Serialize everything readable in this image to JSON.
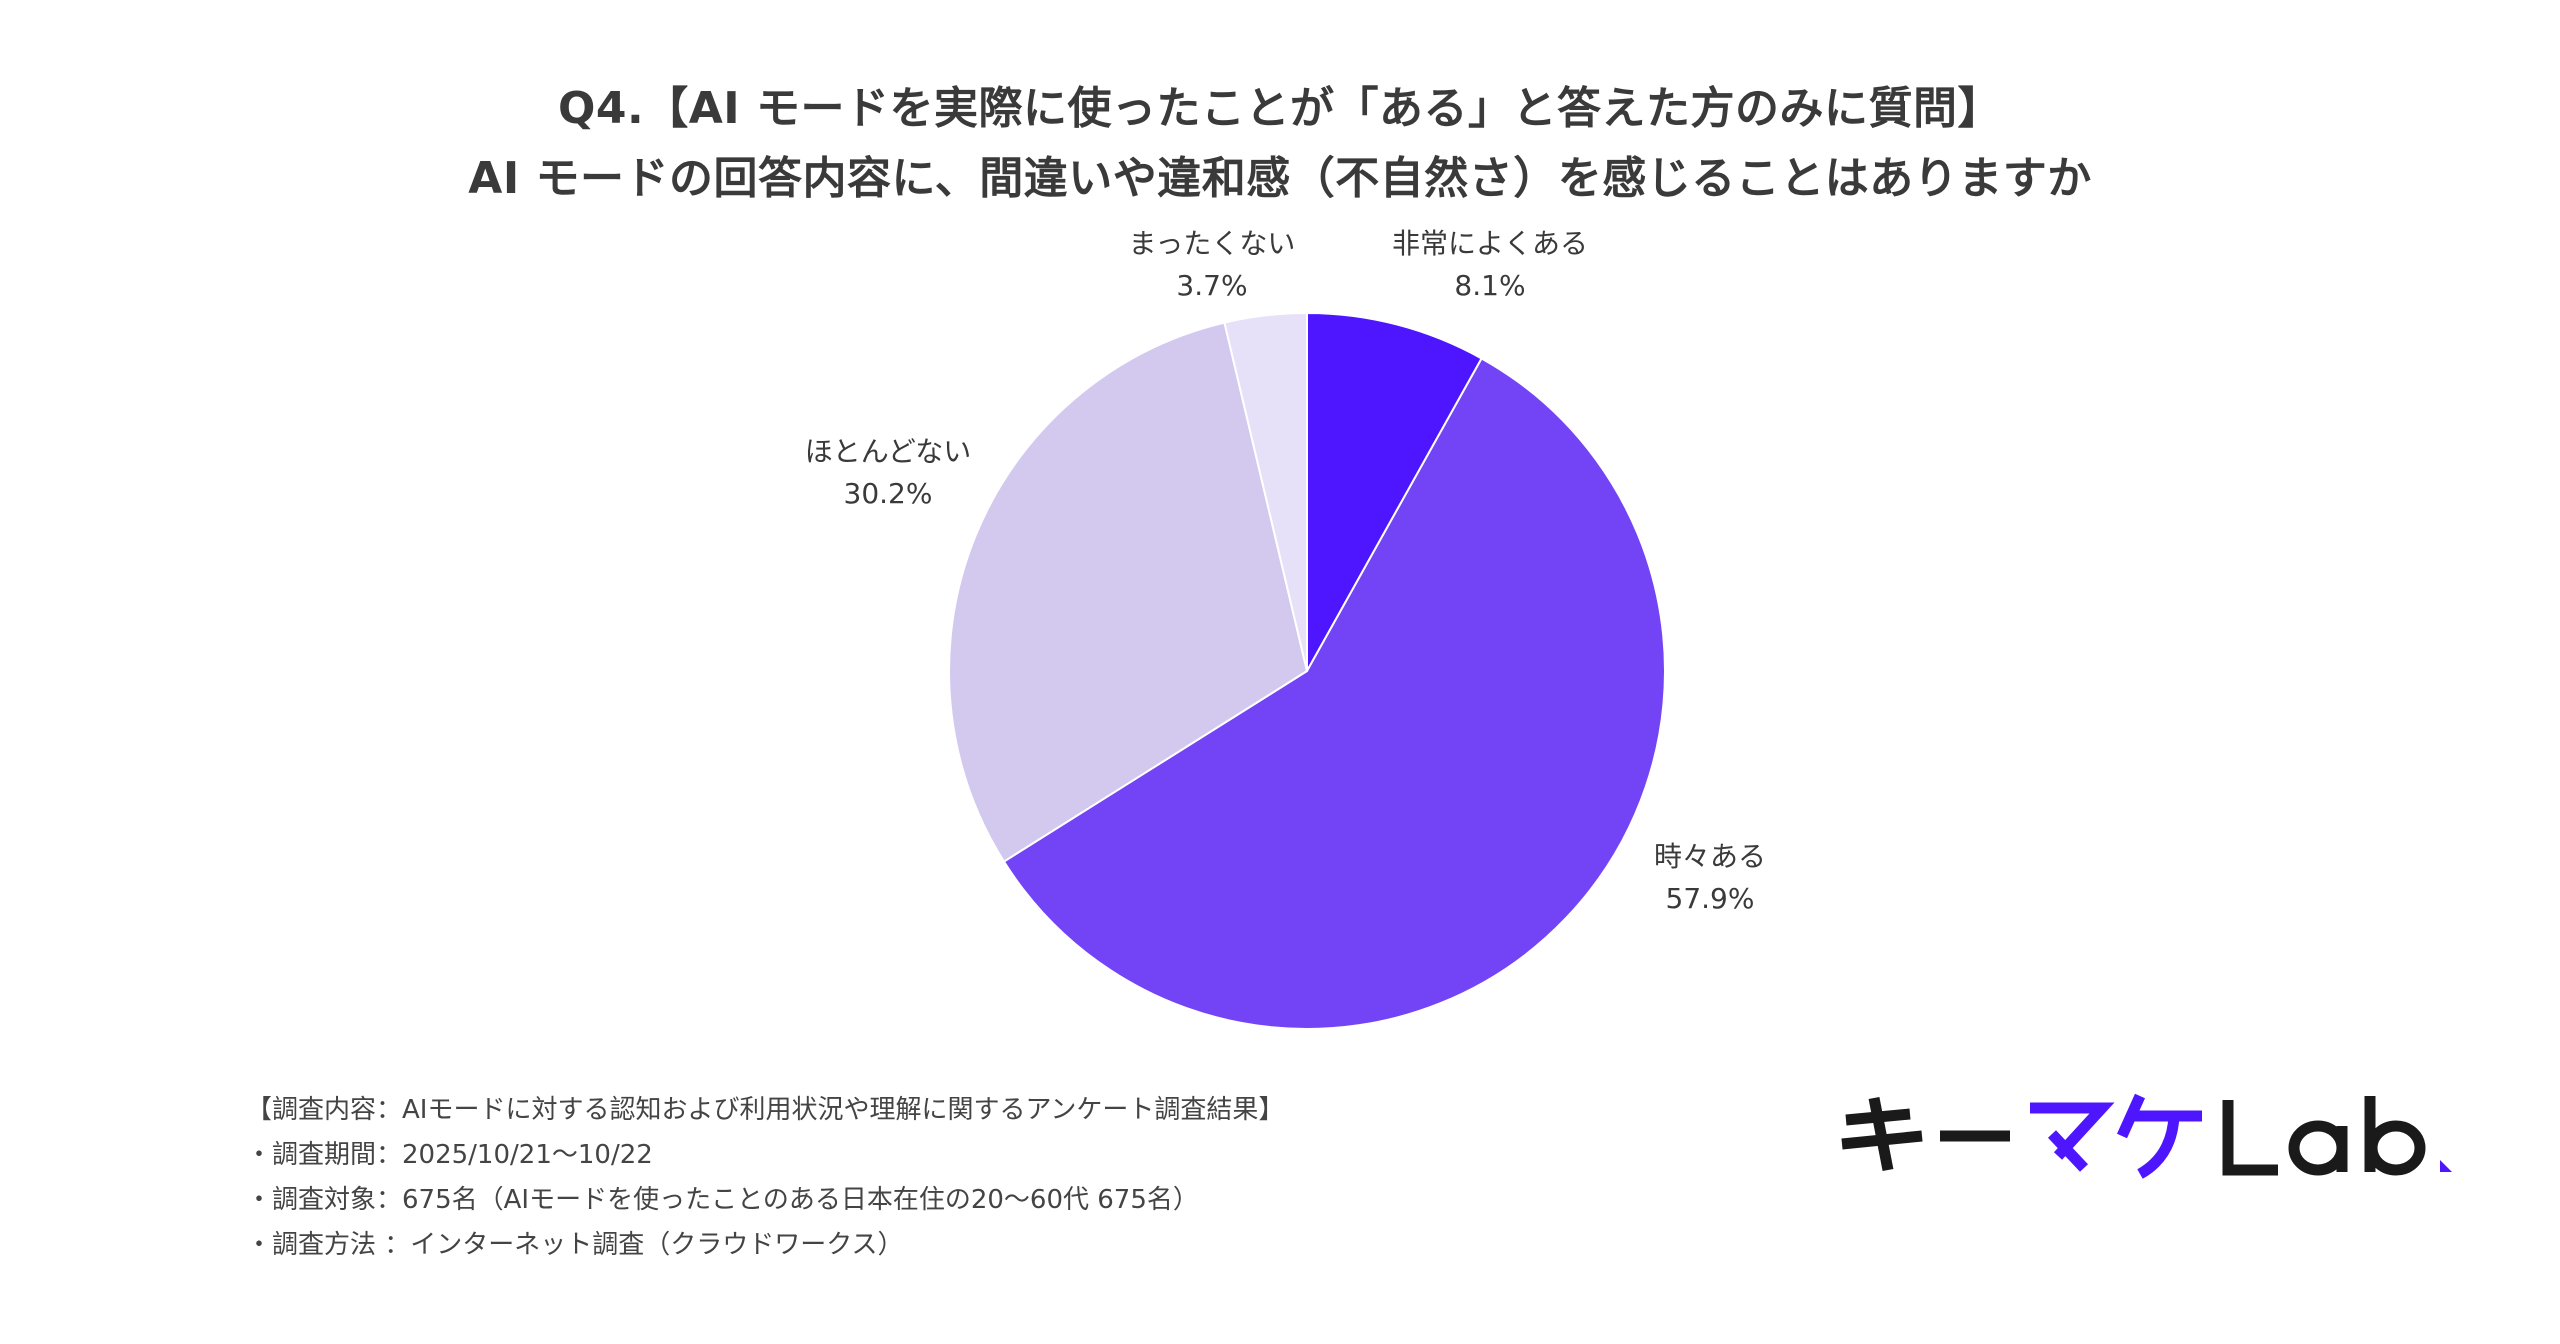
{
  "title": {
    "line1": "Q4.【AI モードを実際に使ったことが「ある」と答えた方のみに質問】",
    "line2": "AI モードの回答内容に、間違いや違和感（不自然さ）を感じることはありますか"
  },
  "chart_data": {
    "type": "pie",
    "start_angle_deg": 0,
    "direction": "clockwise",
    "slices": [
      {
        "label": "非常によくある",
        "value": 8.1,
        "display": "8.1%",
        "color": "#4d16ff"
      },
      {
        "label": "時々ある",
        "value": 57.9,
        "display": "57.9%",
        "color": "#7344f6"
      },
      {
        "label": "ほとんどない",
        "value": 30.2,
        "display": "30.2%",
        "color": "#d3c9ef"
      },
      {
        "label": "まったくない",
        "value": 3.7,
        "display": "3.7%",
        "color": "#e6e0f8"
      }
    ]
  },
  "notes": [
    "【調査内容：AIモードに対する認知および利用状況や理解に関するアンケート調査結果】",
    "・調査期間：2025/10/21〜10/22",
    "・調査対象：675名（AIモードを使ったことのある日本在住の20〜60代 675名）",
    "・調査方法 ：インターネット調査（クラウドワークス）"
  ],
  "logo": {
    "text_dark1": "キー",
    "text_accent": "マケ",
    "text_dark2": "Lab",
    "accent_color": "#4d16ff",
    "dark_color": "#1a1a1a"
  }
}
